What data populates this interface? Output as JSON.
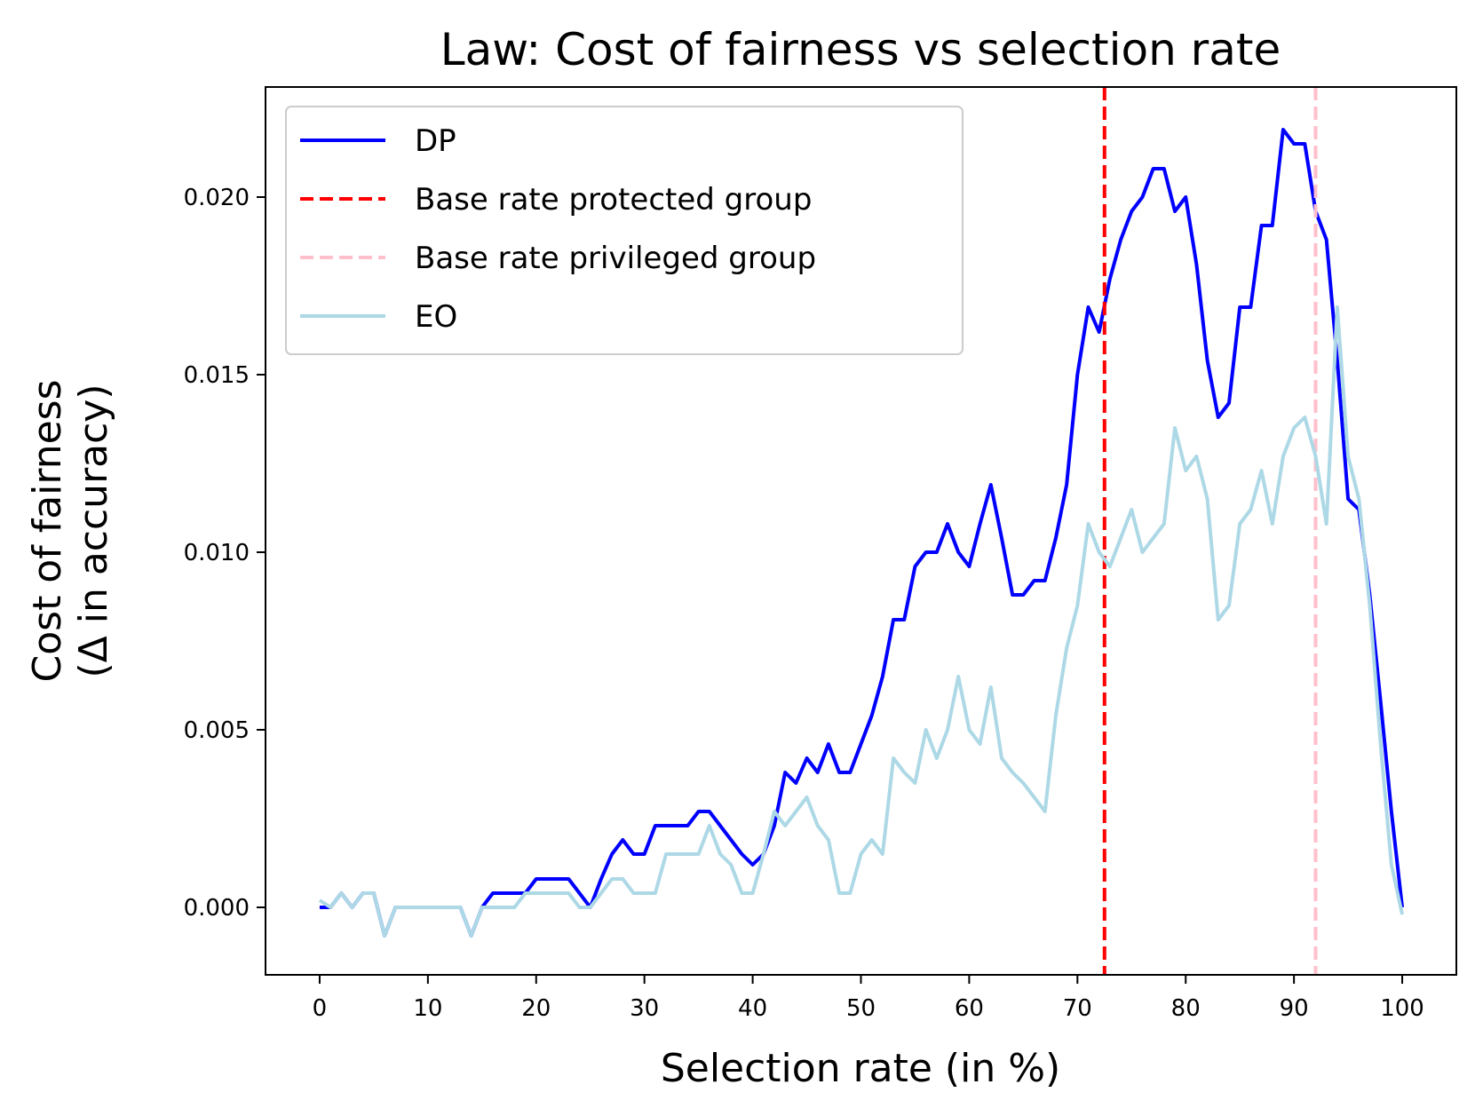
{
  "chart_data": {
    "type": "line",
    "title": "Law: Cost of fairness vs selection rate",
    "xlabel": "Selection rate (in %)",
    "ylabel": [
      "Cost of fairness",
      "(Δ in accuracy)"
    ],
    "xlim": [
      -5,
      105
    ],
    "ylim": [
      -0.0019,
      0.0231
    ],
    "xticks": [
      0,
      10,
      20,
      30,
      40,
      50,
      60,
      70,
      80,
      90,
      100
    ],
    "xtick_labels": [
      "0",
      "10",
      "20",
      "30",
      "40",
      "50",
      "60",
      "70",
      "80",
      "90",
      "100"
    ],
    "yticks": [
      0.0,
      0.005,
      0.01,
      0.015,
      0.02
    ],
    "ytick_labels": [
      "0.000",
      "0.005",
      "0.010",
      "0.015",
      "0.020"
    ],
    "grid": false,
    "legend_position": "top-left",
    "series": [
      {
        "name": "DP",
        "color": "#0000ff",
        "style": "solid",
        "x": [
          0,
          1,
          2,
          3,
          4,
          5,
          6,
          7,
          8,
          9,
          10,
          11,
          12,
          13,
          14,
          15,
          16,
          17,
          18,
          19,
          20,
          21,
          22,
          23,
          24,
          25,
          26,
          27,
          28,
          29,
          30,
          31,
          32,
          33,
          34,
          35,
          36,
          37,
          38,
          39,
          40,
          41,
          42,
          43,
          44,
          45,
          46,
          47,
          48,
          49,
          50,
          51,
          52,
          53,
          54,
          55,
          56,
          57,
          58,
          59,
          60,
          61,
          62,
          63,
          64,
          65,
          66,
          67,
          68,
          69,
          70,
          71,
          72,
          73,
          74,
          75,
          76,
          77,
          78,
          79,
          80,
          81,
          82,
          83,
          84,
          85,
          86,
          87,
          88,
          89,
          90,
          91,
          92,
          93,
          94,
          95,
          96,
          97,
          98,
          99,
          100
        ],
        "y": [
          0.0,
          0.0,
          0.0004,
          0.0,
          0.0004,
          0.0004,
          -0.0008,
          0.0,
          0.0,
          0.0,
          0.0,
          0.0,
          0.0,
          0.0,
          -0.0008,
          0.0,
          0.0004,
          0.0004,
          0.0004,
          0.0004,
          0.0008,
          0.0008,
          0.0008,
          0.0008,
          0.0004,
          0.0,
          0.0008,
          0.0015,
          0.0019,
          0.0015,
          0.0015,
          0.0023,
          0.0023,
          0.0023,
          0.0023,
          0.0027,
          0.0027,
          0.0023,
          0.0019,
          0.0015,
          0.0012,
          0.0015,
          0.0023,
          0.0038,
          0.0035,
          0.0042,
          0.0038,
          0.0046,
          0.0038,
          0.0038,
          0.0046,
          0.0054,
          0.0065,
          0.0081,
          0.0081,
          0.0096,
          0.01,
          0.01,
          0.0108,
          0.01,
          0.0096,
          0.0108,
          0.0119,
          0.0104,
          0.0088,
          0.0088,
          0.0092,
          0.0092,
          0.0104,
          0.0119,
          0.015,
          0.0169,
          0.0162,
          0.0177,
          0.0188,
          0.0196,
          0.02,
          0.0208,
          0.0208,
          0.0196,
          0.02,
          0.0181,
          0.0154,
          0.0138,
          0.0142,
          0.0169,
          0.0169,
          0.0192,
          0.0192,
          0.0219,
          0.0215,
          0.0215,
          0.0196,
          0.0188,
          0.0154,
          0.0115,
          0.0112,
          0.0088,
          0.0058,
          0.0027,
          0.0
        ]
      },
      {
        "name": "Base rate protected group",
        "color": "#ff0000",
        "style": "dashed",
        "vline_x": 72.5
      },
      {
        "name": "Base rate privileged group",
        "color": "#ffc0cb",
        "style": "dashed",
        "vline_x": 92
      },
      {
        "name": "EO",
        "color": "#add8e6",
        "style": "solid",
        "x": [
          0,
          1,
          2,
          3,
          4,
          5,
          6,
          7,
          8,
          9,
          10,
          11,
          12,
          13,
          14,
          15,
          16,
          17,
          18,
          19,
          20,
          21,
          22,
          23,
          24,
          25,
          26,
          27,
          28,
          29,
          30,
          31,
          32,
          33,
          34,
          35,
          36,
          37,
          38,
          39,
          40,
          41,
          42,
          43,
          44,
          45,
          46,
          47,
          48,
          49,
          50,
          51,
          52,
          53,
          54,
          55,
          56,
          57,
          58,
          59,
          60,
          61,
          62,
          63,
          64,
          65,
          66,
          67,
          68,
          69,
          70,
          71,
          72,
          73,
          74,
          75,
          76,
          77,
          78,
          79,
          80,
          81,
          82,
          83,
          84,
          85,
          86,
          87,
          88,
          89,
          90,
          91,
          92,
          93,
          94,
          95,
          96,
          97,
          98,
          99,
          100
        ],
        "y": [
          0.0002,
          0.0,
          0.0004,
          0.0,
          0.0004,
          0.0004,
          -0.0008,
          0.0,
          0.0,
          0.0,
          0.0,
          0.0,
          0.0,
          0.0,
          -0.0008,
          0.0,
          0.0,
          0.0,
          0.0,
          0.0004,
          0.0004,
          0.0004,
          0.0004,
          0.0004,
          0.0,
          0.0,
          0.0004,
          0.0008,
          0.0008,
          0.0004,
          0.0004,
          0.0004,
          0.0015,
          0.0015,
          0.0015,
          0.0015,
          0.0023,
          0.0015,
          0.0012,
          0.0004,
          0.0004,
          0.0015,
          0.0027,
          0.0023,
          0.0027,
          0.0031,
          0.0023,
          0.0019,
          0.0004,
          0.0004,
          0.0015,
          0.0019,
          0.0015,
          0.0042,
          0.0038,
          0.0035,
          0.005,
          0.0042,
          0.005,
          0.0065,
          0.005,
          0.0046,
          0.0062,
          0.0042,
          0.0038,
          0.0035,
          0.0031,
          0.0027,
          0.0054,
          0.0073,
          0.0085,
          0.0108,
          0.01,
          0.0096,
          0.0104,
          0.0112,
          0.01,
          0.0104,
          0.0108,
          0.0135,
          0.0123,
          0.0127,
          0.0115,
          0.0081,
          0.0085,
          0.0108,
          0.0112,
          0.0123,
          0.0108,
          0.0127,
          0.0135,
          0.0138,
          0.0127,
          0.0108,
          0.0169,
          0.0127,
          0.0115,
          0.0085,
          0.0046,
          0.0012,
          -0.0002
        ]
      }
    ]
  }
}
